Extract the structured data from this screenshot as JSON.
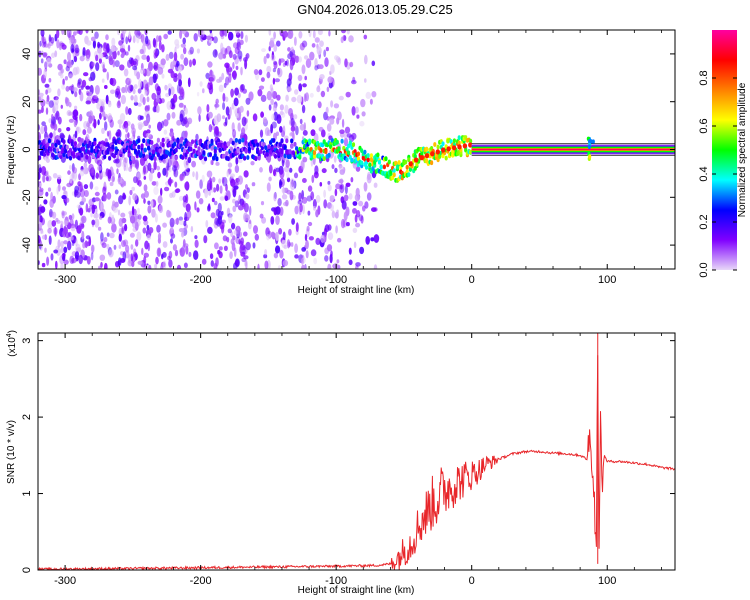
{
  "chart_data": [
    {
      "type": "heatmap",
      "title": "GN04.2026.013.05.29.C25",
      "xlabel": "Height of straight line (km)",
      "ylabel": "Frequency (Hz)",
      "xlim": [
        -320,
        150
      ],
      "ylim": [
        -50,
        50
      ],
      "x_ticks": [
        -300,
        -200,
        -100,
        0,
        100
      ],
      "y_ticks": [
        -40,
        -20,
        0,
        20,
        40
      ],
      "colorbar": {
        "label": "Normalized spectral amplitude",
        "range": [
          0,
          1
        ],
        "ticks": [
          "0.0",
          "0.2",
          "0.4",
          "0.6",
          "0.8"
        ],
        "tick_values": [
          0.0,
          0.2,
          0.4,
          0.6,
          0.8
        ],
        "colors": [
          "#e8d8f8",
          "#8000ff",
          "#0000ff",
          "#00ffff",
          "#00ff00",
          "#ffff00",
          "#ff8000",
          "#ff0000",
          "#ff00a0"
        ]
      },
      "ridge": {
        "x": [
          -320,
          -280,
          -240,
          -200,
          -160,
          -130,
          -110,
          -100,
          -90,
          -80,
          -70,
          -60,
          -55,
          -50,
          -45,
          -40,
          -30,
          -20,
          -10,
          0,
          20,
          60,
          85,
          90,
          100,
          150
        ],
        "y": [
          0,
          0,
          0,
          0,
          0,
          0,
          0,
          0,
          -1,
          -4,
          -6,
          -8,
          -10,
          -8,
          -6,
          -4,
          -2,
          0,
          1,
          2,
          0,
          0,
          0,
          0,
          0,
          0
        ]
      }
    },
    {
      "type": "line",
      "xlabel": "Height of straight line (km)",
      "ylabel": "SNR (10 * v/v)",
      "multiplier": "(x10",
      "multiplier_exp": "4",
      "multiplier_close": ")",
      "xlim": [
        -320,
        150
      ],
      "ylim": [
        0,
        3.1
      ],
      "x_ticks": [
        -300,
        -200,
        -100,
        0,
        100
      ],
      "y_ticks": [
        0,
        1,
        2,
        3
      ],
      "series": [
        {
          "name": "SNR",
          "color": "#e8262a",
          "x": [
            -320,
            -250,
            -200,
            -150,
            -100,
            -70,
            -60,
            -55,
            -50,
            -45,
            -40,
            -35,
            -30,
            -25,
            -20,
            -15,
            -10,
            -5,
            0,
            5,
            10,
            20,
            30,
            40,
            50,
            60,
            70,
            80,
            85,
            88,
            90,
            92,
            93,
            94,
            95,
            96,
            98,
            100,
            110,
            120,
            130,
            140,
            150
          ],
          "y": [
            0.01,
            0.02,
            0.03,
            0.04,
            0.05,
            0.06,
            0.08,
            0.15,
            0.25,
            0.35,
            0.55,
            0.7,
            0.85,
            0.95,
            1.05,
            1.1,
            1.15,
            1.2,
            1.25,
            1.3,
            1.38,
            1.45,
            1.52,
            1.55,
            1.55,
            1.53,
            1.52,
            1.5,
            1.45,
            1.8,
            1.0,
            0.4,
            3.1,
            0.1,
            1.9,
            1.2,
            1.5,
            1.42,
            1.42,
            1.4,
            1.38,
            1.34,
            1.32
          ]
        }
      ]
    }
  ]
}
